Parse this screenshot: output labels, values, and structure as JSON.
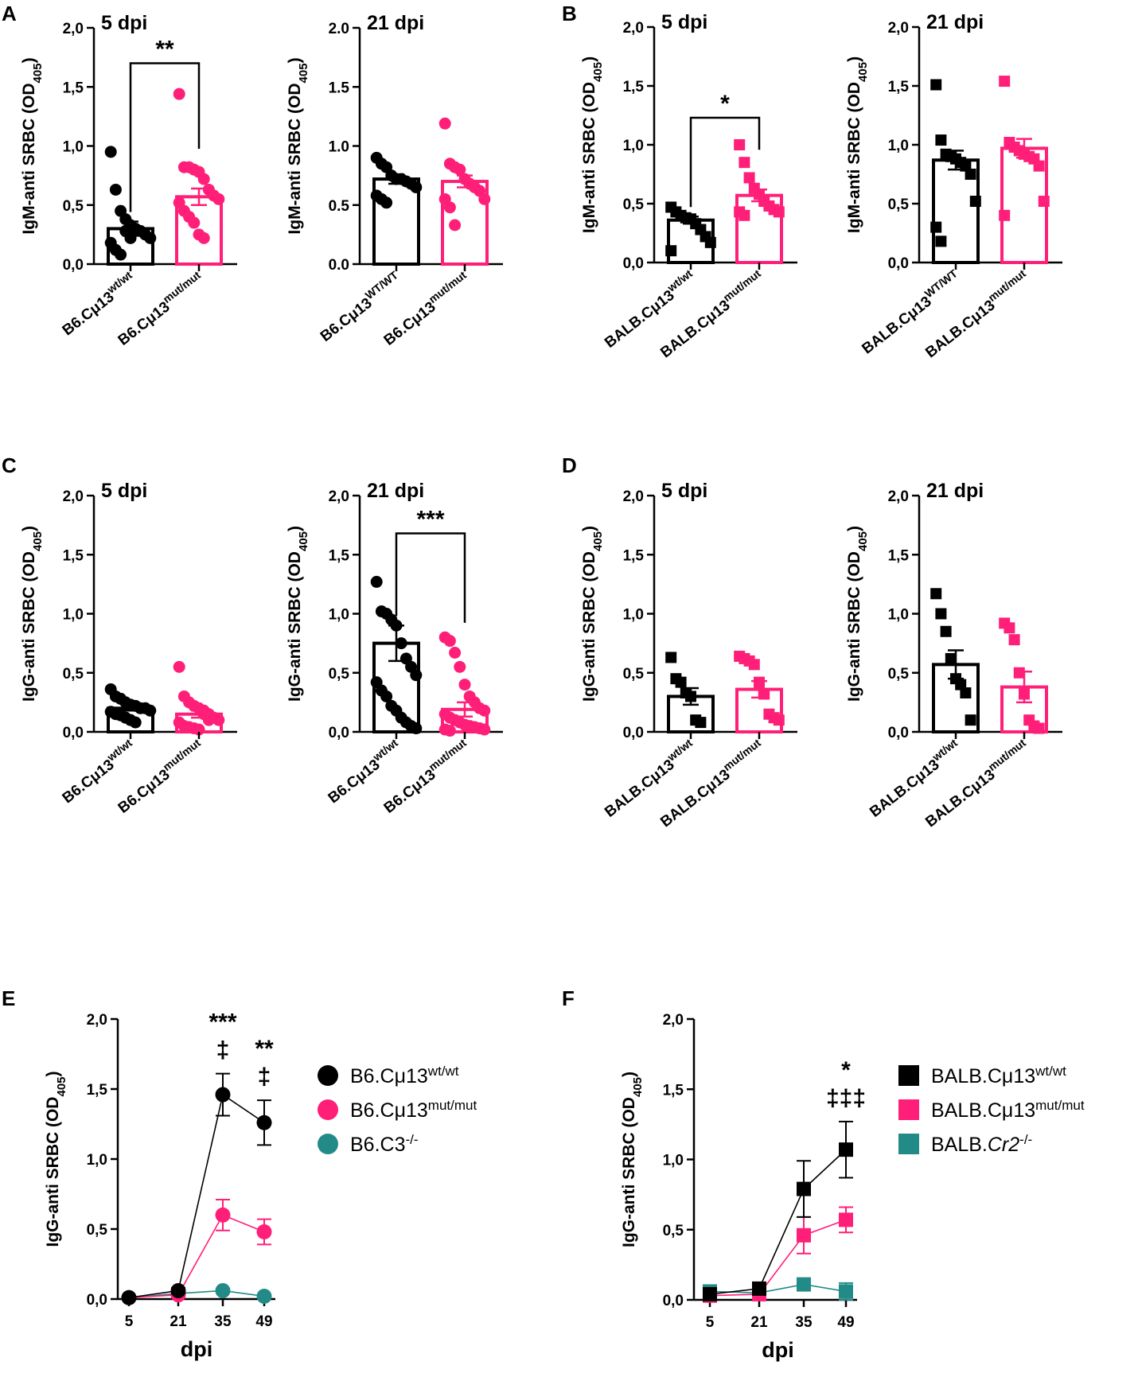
{
  "colors": {
    "wt": "#000000",
    "mut": "#ff1f78",
    "ko": "#238b87"
  },
  "panel_labels": [
    "A",
    "B",
    "C",
    "D",
    "E",
    "F"
  ],
  "chart_data": [
    {
      "id": "A1",
      "panel": "A",
      "type": "bar",
      "title": "5 dpi",
      "ylabel": "IgM-anti SRBC (OD",
      "ylabel_sub": "405",
      "ylabel_end": ")",
      "ylim": [
        0,
        2
      ],
      "yticks": [
        "0,0",
        "0,5",
        "1,0",
        "1,5",
        "2,0"
      ],
      "marker": "circle",
      "categories": [
        {
          "label": "B6.Cμ13",
          "sup": "wt/wt",
          "mean": 0.3,
          "sem": 0.06,
          "points": [
            0.95,
            0.63,
            0.45,
            0.38,
            0.33,
            0.3,
            0.28,
            0.25,
            0.22,
            0.18,
            0.12,
            0.08,
            0.28,
            0.22
          ]
        },
        {
          "label": "B6.Cμ13",
          "sup": "mut/mut",
          "mean": 0.57,
          "sem": 0.07,
          "points": [
            1.44,
            0.82,
            0.82,
            0.8,
            0.78,
            0.72,
            0.63,
            0.58,
            0.55,
            0.52,
            0.45,
            0.4,
            0.35,
            0.25,
            0.22
          ]
        }
      ],
      "significance": "**"
    },
    {
      "id": "A2",
      "panel": "A",
      "type": "bar",
      "title": "21 dpi",
      "ylabel": "IgM-anti SRBC (OD",
      "ylabel_sub": "405",
      "ylabel_end": ")",
      "ylim": [
        0,
        2
      ],
      "yticks": [
        "0.0",
        "0.5",
        "1.0",
        "1.5",
        "2.0"
      ],
      "marker": "circle",
      "categories": [
        {
          "label": "B6.Cμ13",
          "sup": "WT/WT",
          "mean": 0.72,
          "sem": 0.04,
          "points": [
            0.9,
            0.85,
            0.82,
            0.75,
            0.72,
            0.72,
            0.7,
            0.68,
            0.65,
            0.58,
            0.55,
            0.52
          ]
        },
        {
          "label": "B6.Cμ13",
          "sup": "mut/mut",
          "mean": 0.7,
          "sem": 0.05,
          "points": [
            1.19,
            0.85,
            0.82,
            0.8,
            0.72,
            0.68,
            0.65,
            0.62,
            0.55,
            0.55,
            0.48,
            0.33
          ]
        }
      ],
      "significance": ""
    },
    {
      "id": "B1",
      "panel": "B",
      "type": "bar",
      "title": "5 dpi",
      "ylabel": "IgM-anti SRBC (OD",
      "ylabel_sub": "405",
      "ylabel_end": ")",
      "ylim": [
        0,
        2
      ],
      "yticks": [
        "0,0",
        "0,5",
        "1,0",
        "1,5",
        "2,0"
      ],
      "marker": "square",
      "categories": [
        {
          "label": "BALB.Cμ13",
          "sup": "wt/wt",
          "mean": 0.36,
          "sem": 0.03,
          "points": [
            0.47,
            0.43,
            0.4,
            0.38,
            0.37,
            0.33,
            0.28,
            0.22,
            0.17,
            0.1
          ]
        },
        {
          "label": "BALB.Cμ13",
          "sup": "mut/mut",
          "mean": 0.57,
          "sem": 0.05,
          "points": [
            1.0,
            0.85,
            0.72,
            0.63,
            0.58,
            0.52,
            0.48,
            0.45,
            0.43,
            0.43,
            0.4
          ]
        }
      ],
      "significance": "*"
    },
    {
      "id": "B2",
      "panel": "B",
      "type": "bar",
      "title": "21 dpi",
      "ylabel": "IgM-anti SRBC (OD",
      "ylabel_sub": "405",
      "ylabel_end": ")",
      "ylim": [
        0,
        2
      ],
      "yticks": [
        "0,0",
        "0,5",
        "1,0",
        "1,5",
        "2,0"
      ],
      "marker": "square",
      "categories": [
        {
          "label": "BALB.Cμ13",
          "sup": "WT/WT",
          "mean": 0.87,
          "sem": 0.08,
          "points": [
            1.51,
            1.04,
            0.92,
            0.9,
            0.88,
            0.85,
            0.82,
            0.75,
            0.52,
            0.3,
            0.18
          ]
        },
        {
          "label": "BALB.Cμ13",
          "sup": "mut/mut",
          "mean": 0.97,
          "sem": 0.08,
          "points": [
            1.54,
            1.02,
            0.98,
            0.95,
            0.92,
            0.9,
            0.88,
            0.82,
            0.52,
            0.4
          ]
        }
      ],
      "significance": ""
    },
    {
      "id": "C1",
      "panel": "C",
      "type": "bar",
      "title": "5 dpi",
      "ylabel": "IgG-anti SRBC (OD",
      "ylabel_sub": "405",
      "ylabel_end": ")",
      "ylim": [
        0,
        2
      ],
      "yticks": [
        "0,0",
        "0,5",
        "1,0",
        "1,5",
        "2,0"
      ],
      "marker": "circle",
      "categories": [
        {
          "label": "B6.Cμ13",
          "sup": "wt/wt",
          "mean": 0.2,
          "sem": 0.02,
          "points": [
            0.36,
            0.3,
            0.28,
            0.25,
            0.23,
            0.22,
            0.2,
            0.2,
            0.18,
            0.17,
            0.15,
            0.14,
            0.12,
            0.1,
            0.08
          ]
        },
        {
          "label": "B6.Cμ13",
          "sup": "mut/mut",
          "mean": 0.15,
          "sem": 0.03,
          "points": [
            0.55,
            0.3,
            0.25,
            0.22,
            0.2,
            0.18,
            0.15,
            0.12,
            0.1,
            0.08,
            0.05,
            0.04,
            0.03,
            0.02,
            0.15,
            0.1
          ]
        }
      ],
      "significance": ""
    },
    {
      "id": "C2",
      "panel": "C",
      "type": "bar",
      "title": "21 dpi",
      "ylabel": "IgG-anti SRBC (OD",
      "ylabel_sub": "405",
      "ylabel_end": ")",
      "ylim": [
        0,
        2
      ],
      "yticks": [
        "0,0",
        "0,5",
        "1,0",
        "1,5",
        "2,0"
      ],
      "marker": "circle",
      "categories": [
        {
          "label": "B6.Cμ13",
          "sup": "wt/wt",
          "mean": 0.75,
          "sem": 0.15,
          "points": [
            1.27,
            1.02,
            1.0,
            0.95,
            0.9,
            0.75,
            0.62,
            0.55,
            0.48,
            0.42,
            0.35,
            0.3,
            0.22,
            0.18,
            0.12,
            0.08,
            0.05,
            0.03
          ]
        },
        {
          "label": "B6.Cμ13",
          "sup": "mut/mut",
          "mean": 0.19,
          "sem": 0.06,
          "points": [
            0.8,
            0.77,
            0.67,
            0.55,
            0.4,
            0.3,
            0.25,
            0.2,
            0.18,
            0.15,
            0.12,
            0.1,
            0.08,
            0.06,
            0.05,
            0.04,
            0.03,
            0.02,
            0.02,
            0.01
          ]
        }
      ],
      "significance": "***"
    },
    {
      "id": "D1",
      "panel": "D",
      "type": "bar",
      "title": "5 dpi",
      "ylabel": "IgG-anti SRBC (OD",
      "ylabel_sub": "405",
      "ylabel_end": ")",
      "ylim": [
        0,
        2
      ],
      "yticks": [
        "0,0",
        "0,5",
        "1,0",
        "1,5",
        "2,0"
      ],
      "marker": "square",
      "categories": [
        {
          "label": "BALB.Cμ13",
          "sup": "wt/wt",
          "mean": 0.3,
          "sem": 0.07,
          "points": [
            0.63,
            0.45,
            0.42,
            0.33,
            0.3,
            0.1,
            0.08
          ]
        },
        {
          "label": "BALB.Cμ13",
          "sup": "mut/mut",
          "mean": 0.36,
          "sem": 0.07,
          "points": [
            0.64,
            0.62,
            0.6,
            0.57,
            0.42,
            0.32,
            0.15,
            0.12,
            0.1
          ]
        }
      ],
      "significance": ""
    },
    {
      "id": "D2",
      "panel": "D",
      "type": "bar",
      "title": "21 dpi",
      "ylabel": "IgG-anti SRBC (OD",
      "ylabel_sub": "405",
      "ylabel_end": ")",
      "ylim": [
        0,
        2
      ],
      "yticks": [
        "0,0",
        "0,5",
        "1,0",
        "1,5",
        "2,0"
      ],
      "marker": "square",
      "categories": [
        {
          "label": "BALB.Cμ13",
          "sup": "wt/wt",
          "mean": 0.57,
          "sem": 0.12,
          "points": [
            1.17,
            1.0,
            0.85,
            0.62,
            0.45,
            0.4,
            0.33,
            0.1
          ]
        },
        {
          "label": "BALB.Cμ13",
          "sup": "mut/mut",
          "mean": 0.38,
          "sem": 0.13,
          "points": [
            0.92,
            0.88,
            0.78,
            0.5,
            0.32,
            0.1,
            0.05,
            0.03
          ]
        }
      ],
      "significance": ""
    },
    {
      "id": "E",
      "panel": "E",
      "type": "line",
      "ylabel": "IgG-anti SRBC (OD",
      "ylabel_sub": "405",
      "ylabel_end": ")",
      "xlabel": "dpi",
      "x": [
        "5",
        "21",
        "35",
        "49"
      ],
      "ylim": [
        0,
        2
      ],
      "yticks": [
        "0,0",
        "0,5",
        "1,0",
        "1,5",
        "2,0"
      ],
      "marker": "circle",
      "series": [
        {
          "name": "B6.Cμ13",
          "sup": "wt/wt",
          "color": "wt",
          "values": [
            0.01,
            0.06,
            1.46,
            1.26
          ],
          "sem": [
            0.01,
            0.02,
            0.15,
            0.16
          ]
        },
        {
          "name": "B6.Cμ13",
          "sup": "mut/mut",
          "color": "mut",
          "values": [
            0.01,
            0.03,
            0.6,
            0.48
          ],
          "sem": [
            0.01,
            0.01,
            0.11,
            0.09
          ]
        },
        {
          "name": "B6.C3",
          "sup": "-/-",
          "color": "ko",
          "values": [
            0.01,
            0.04,
            0.06,
            0.02
          ],
          "sem": [
            0.0,
            0.0,
            0.0,
            0.0
          ]
        }
      ],
      "annotations": [
        {
          "x_index": 2,
          "lines": [
            "***",
            "‡"
          ]
        },
        {
          "x_index": 3,
          "lines": [
            "**",
            "‡"
          ]
        }
      ]
    },
    {
      "id": "F",
      "panel": "F",
      "type": "line",
      "ylabel": "IgG-anti SRBC (OD",
      "ylabel_sub": "405",
      "ylabel_end": ")",
      "xlabel": "dpi",
      "x": [
        "5",
        "21",
        "35",
        "49"
      ],
      "ylim": [
        0,
        2
      ],
      "yticks": [
        "0,0",
        "0,5",
        "1,0",
        "1,5",
        "2,0"
      ],
      "marker": "square",
      "series": [
        {
          "name": "BALB.Cμ13",
          "sup": "wt/wt",
          "color": "wt",
          "values": [
            0.04,
            0.08,
            0.79,
            1.07
          ],
          "sem": [
            0.01,
            0.02,
            0.2,
            0.2
          ]
        },
        {
          "name": "BALB.Cμ13",
          "sup": "mut/mut",
          "color": "mut",
          "values": [
            0.03,
            0.04,
            0.46,
            0.57
          ],
          "sem": [
            0.01,
            0.01,
            0.13,
            0.09
          ]
        },
        {
          "name": "BALB.",
          "name_italic": "Cr2",
          "sup": "-/-",
          "color": "ko",
          "values": [
            0.06,
            0.05,
            0.11,
            0.06
          ],
          "sem": [
            0.02,
            0.01,
            0.04,
            0.06
          ]
        }
      ],
      "annotations": [
        {
          "x_index": 3,
          "lines": [
            "*",
            "‡‡‡"
          ]
        }
      ]
    }
  ]
}
